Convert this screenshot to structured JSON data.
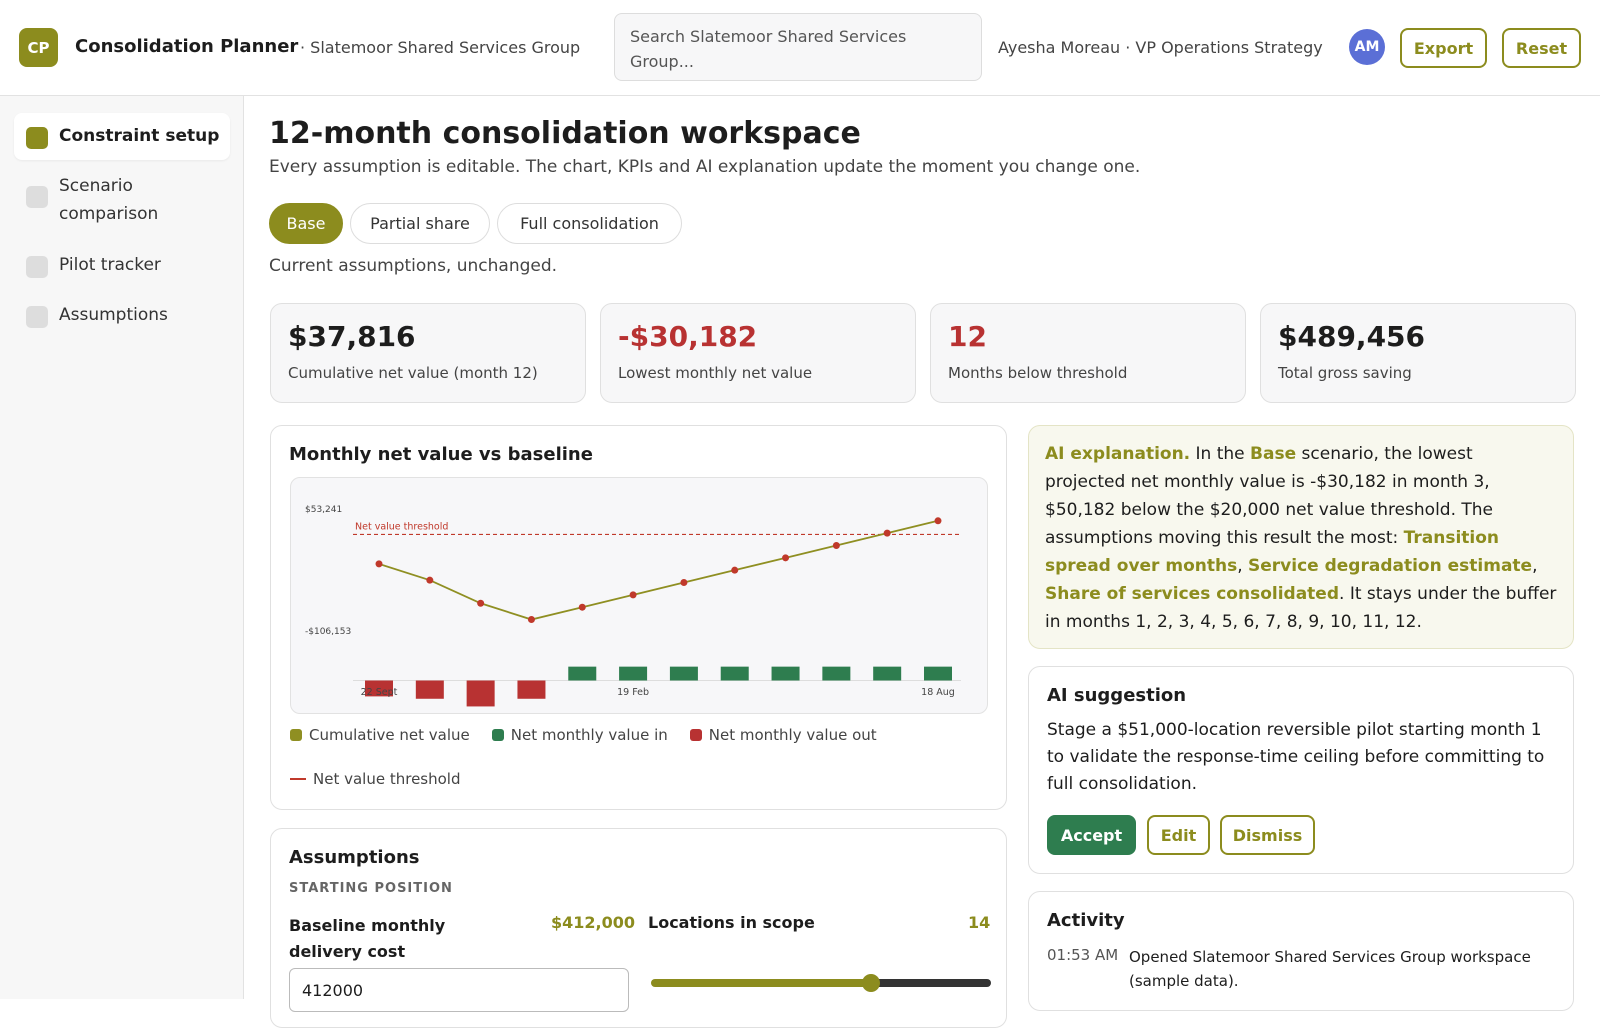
{
  "header": {
    "logo": "CP",
    "app_name": "Consolidation Planner",
    "org": "· Slatemoor Shared Services Group",
    "search_placeholder": "Search Slatemoor Shared Services Group...",
    "user": "Ayesha Moreau · VP Operations Strategy",
    "avatar": "AM",
    "buttons": [
      "Export",
      "Reset"
    ]
  },
  "sidebar": {
    "items": [
      "Constraint setup",
      "Scenario comparison",
      "Pilot tracker",
      "Assumptions"
    ]
  },
  "main": {
    "title": "12-month consolidation workspace",
    "subtitle": "Every assumption is editable. The chart, KPIs and AI explanation update the moment you change one.",
    "tabs": [
      "Base",
      "Partial share",
      "Full consolidation"
    ],
    "tab_note": "Current assumptions, unchanged."
  },
  "kpis": [
    {
      "value": "$37,816",
      "label": "Cumulative net value (month 12)"
    },
    {
      "value": "-$30,182",
      "label": "Lowest monthly net value",
      "alert": true
    },
    {
      "value": "12",
      "label": "Months below threshold",
      "alert": true
    },
    {
      "value": "$489,456",
      "label": "Total gross saving"
    }
  ],
  "chart_data": {
    "type": "combo",
    "title": "Monthly net value vs baseline",
    "categories": [
      "22 Sept",
      null,
      null,
      null,
      null,
      "19 Feb",
      null,
      null,
      null,
      null,
      null,
      "18 Aug"
    ],
    "ylim": [
      -106153,
      53241
    ],
    "yticks": [
      {
        "value": 53241,
        "label": "$53,241"
      },
      {
        "value": -106153,
        "label": "-$106,153"
      }
    ],
    "y2lim": [
      -32000,
      32000
    ],
    "series": [
      {
        "name": "Cumulative net value",
        "type": "line",
        "color": "#8f8f22",
        "marker_color": "#c0392b",
        "values": [
          -18487,
          -39740,
          -69922,
          -91175,
          -75051,
          -58927,
          -42803,
          -26679,
          -10555,
          5569,
          21693,
          37816
        ]
      },
      {
        "name": "Net monthly value in",
        "type": "bar",
        "axis": "y2",
        "color": "#2e7d4f",
        "values": [
          null,
          null,
          null,
          null,
          16124,
          16124,
          16124,
          16124,
          16124,
          16124,
          16124,
          16124
        ]
      },
      {
        "name": "Net monthly value out",
        "type": "bar",
        "axis": "y2",
        "color": "#b83232",
        "values": [
          -18487,
          -21253,
          -30182,
          -21253,
          null,
          null,
          null,
          null,
          null,
          null,
          null,
          null
        ]
      }
    ],
    "threshold": {
      "name": "Net value threshold",
      "value": 20000,
      "color": "#c0392b"
    }
  },
  "ai_explanation": {
    "segments": [
      {
        "text": "AI explanation.",
        "strong": true
      },
      {
        "text": " In the "
      },
      {
        "text": "Base",
        "strong": true
      },
      {
        "text": " scenario, the lowest projected net monthly value is -$30,182 in month 3, $50,182 below the $20,000 net value threshold. The assumptions moving this result the most: "
      },
      {
        "text": "Transition spread over months",
        "strong": true
      },
      {
        "text": ", "
      },
      {
        "text": "Service degradation estimate",
        "strong": true
      },
      {
        "text": ", "
      },
      {
        "text": "Share of services consolidated",
        "strong": true
      },
      {
        "text": ". It stays under the buffer in months 1, 2, 3, 4, 5, 6, 7, 8, 9, 10, 11, 12."
      }
    ]
  },
  "ai_suggestion": {
    "title": "AI suggestion",
    "text": "Stage a $51,000-location reversible pilot starting month 1 to validate the response-time ceiling before committing to full consolidation.",
    "buttons": [
      "Accept",
      "Edit",
      "Dismiss"
    ]
  },
  "activity": {
    "title": "Activity",
    "items": [
      {
        "time": "01:53 AM",
        "text": "Opened Slatemoor Shared Services Group workspace (sample data)."
      }
    ]
  },
  "assumptions": {
    "title": "Assumptions",
    "section": "STARTING POSITION",
    "fields": [
      {
        "label": "Baseline monthly delivery cost",
        "value": "$412,000",
        "input": "412000"
      },
      {
        "label": "Locations in scope",
        "value": "14"
      }
    ]
  }
}
